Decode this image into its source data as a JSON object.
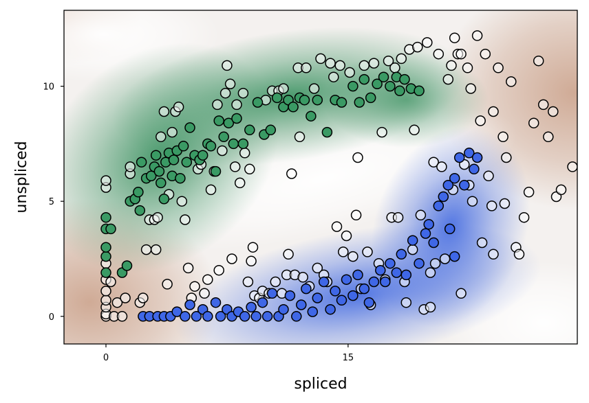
{
  "chart_data": {
    "type": "scatter",
    "title": "",
    "xlabel": "spliced",
    "ylabel": "unspliced",
    "xlim": [
      -2.6,
      29.2
    ],
    "ylim": [
      -1.2,
      13.3
    ],
    "xticks": [
      0,
      15
    ],
    "xtick_labels": [
      "0",
      "15"
    ],
    "yticks": [
      0,
      5,
      10
    ],
    "ytick_labels": [
      "0",
      "5",
      "10"
    ],
    "grid": false,
    "legend": "none",
    "colors": {
      "green": "#3a9a64",
      "blue": "#3f67e6",
      "white": "#ffffff",
      "background_green": "#2e8b57",
      "background_blue": "#4169e1",
      "background_brown": "#c99e86",
      "edge": "#000000"
    },
    "series": [
      {
        "color": "green",
        "points": [
          [
            0,
            1.9
          ],
          [
            0,
            2.6
          ],
          [
            0,
            3.0
          ],
          [
            0,
            3.8
          ],
          [
            0,
            4.3
          ],
          [
            0.3,
            3.8
          ],
          [
            1.0,
            1.9
          ],
          [
            1.3,
            2.2
          ],
          [
            1.5,
            5.0
          ],
          [
            1.8,
            5.1
          ],
          [
            2.0,
            5.4
          ],
          [
            2.1,
            4.6
          ],
          [
            2.2,
            6.7
          ],
          [
            2.5,
            6.0
          ],
          [
            2.8,
            6.1
          ],
          [
            3.0,
            6.5
          ],
          [
            3.1,
            7.0
          ],
          [
            3.3,
            6.3
          ],
          [
            3.4,
            5.8
          ],
          [
            3.6,
            5.1
          ],
          [
            3.7,
            6.7
          ],
          [
            3.9,
            7.1
          ],
          [
            4.1,
            6.1
          ],
          [
            4.2,
            6.8
          ],
          [
            4.4,
            7.2
          ],
          [
            4.6,
            6.0
          ],
          [
            4.8,
            7.4
          ],
          [
            5.0,
            6.7
          ],
          [
            5.2,
            8.2
          ],
          [
            5.5,
            7.0
          ],
          [
            5.8,
            6.8
          ],
          [
            6.0,
            7.0
          ],
          [
            6.3,
            7.5
          ],
          [
            6.5,
            7.4
          ],
          [
            6.8,
            6.3
          ],
          [
            7.0,
            8.5
          ],
          [
            7.3,
            7.8
          ],
          [
            7.6,
            8.4
          ],
          [
            7.9,
            7.5
          ],
          [
            8.1,
            8.6
          ],
          [
            8.5,
            7.5
          ],
          [
            8.9,
            8.1
          ],
          [
            9.4,
            9.3
          ],
          [
            9.8,
            7.9
          ],
          [
            10.2,
            8.1
          ],
          [
            10.6,
            9.5
          ],
          [
            11.0,
            9.1
          ],
          [
            11.3,
            9.4
          ],
          [
            11.6,
            9.1
          ],
          [
            12.0,
            9.5
          ],
          [
            12.3,
            9.4
          ],
          [
            12.7,
            8.7
          ],
          [
            13.1,
            9.4
          ],
          [
            13.7,
            8.0
          ],
          [
            14.2,
            9.4
          ],
          [
            14.6,
            9.3
          ],
          [
            15.3,
            10.0
          ],
          [
            15.7,
            9.3
          ],
          [
            16.0,
            10.3
          ],
          [
            16.4,
            9.5
          ],
          [
            16.8,
            10.1
          ],
          [
            17.2,
            10.4
          ],
          [
            17.6,
            10.0
          ],
          [
            18.0,
            10.4
          ],
          [
            18.2,
            9.8
          ],
          [
            18.5,
            10.3
          ],
          [
            18.9,
            9.9
          ],
          [
            19.4,
            9.8
          ]
        ]
      },
      {
        "color": "blue",
        "points": [
          [
            2.3,
            0
          ],
          [
            2.7,
            0
          ],
          [
            3.2,
            0
          ],
          [
            3.6,
            0
          ],
          [
            4.0,
            0
          ],
          [
            4.4,
            0.2
          ],
          [
            4.9,
            0
          ],
          [
            5.2,
            0.5
          ],
          [
            5.6,
            0
          ],
          [
            6.0,
            0.3
          ],
          [
            6.3,
            0
          ],
          [
            6.8,
            0.6
          ],
          [
            7.1,
            0
          ],
          [
            7.5,
            0.3
          ],
          [
            7.8,
            0
          ],
          [
            8.2,
            0.2
          ],
          [
            8.6,
            0
          ],
          [
            9.0,
            0.4
          ],
          [
            9.3,
            0
          ],
          [
            9.7,
            0.6
          ],
          [
            10.0,
            0
          ],
          [
            10.3,
            1.0
          ],
          [
            10.7,
            0
          ],
          [
            11.0,
            0.3
          ],
          [
            11.4,
            0.9
          ],
          [
            11.8,
            0
          ],
          [
            12.1,
            0.5
          ],
          [
            12.4,
            1.2
          ],
          [
            12.8,
            0.2
          ],
          [
            13.1,
            0.8
          ],
          [
            13.5,
            1.5
          ],
          [
            13.9,
            0.3
          ],
          [
            14.2,
            1.1
          ],
          [
            14.6,
            0.7
          ],
          [
            14.9,
            1.6
          ],
          [
            15.3,
            0.9
          ],
          [
            15.6,
            1.8
          ],
          [
            16.0,
            1.2
          ],
          [
            16.3,
            0.6
          ],
          [
            16.6,
            1.5
          ],
          [
            17.0,
            2.0
          ],
          [
            17.3,
            1.5
          ],
          [
            17.6,
            2.3
          ],
          [
            18.0,
            1.9
          ],
          [
            18.3,
            2.7
          ],
          [
            18.6,
            1.8
          ],
          [
            19.0,
            3.3
          ],
          [
            19.4,
            2.3
          ],
          [
            19.8,
            3.6
          ],
          [
            20.0,
            4.0
          ],
          [
            20.3,
            3.2
          ],
          [
            20.6,
            4.8
          ],
          [
            20.9,
            5.2
          ],
          [
            21.2,
            5.7
          ],
          [
            21.3,
            3.8
          ],
          [
            21.6,
            6.0
          ],
          [
            21.9,
            6.9
          ],
          [
            22.2,
            5.7
          ],
          [
            22.5,
            7.1
          ],
          [
            22.8,
            6.4
          ],
          [
            23.0,
            6.9
          ],
          [
            21.6,
            2.6
          ]
        ]
      },
      {
        "color": "white",
        "points": [
          [
            0,
            0
          ],
          [
            0,
            0.1
          ],
          [
            0,
            0.4
          ],
          [
            0,
            0.7
          ],
          [
            0,
            1.1
          ],
          [
            0,
            1.6
          ],
          [
            0,
            2.3
          ],
          [
            0,
            5.6
          ],
          [
            0,
            5.9
          ],
          [
            0.3,
            1.5
          ],
          [
            0.5,
            0
          ],
          [
            0.7,
            0.6
          ],
          [
            1.0,
            0
          ],
          [
            1.2,
            0.8
          ],
          [
            1.5,
            6.2
          ],
          [
            1.5,
            6.5
          ],
          [
            1.8,
            5.1
          ],
          [
            2.1,
            0.6
          ],
          [
            2.3,
            0.8
          ],
          [
            2.5,
            2.9
          ],
          [
            2.7,
            4.2
          ],
          [
            3.0,
            4.2
          ],
          [
            3.1,
            2.9
          ],
          [
            3.2,
            4.3
          ],
          [
            3.4,
            7.8
          ],
          [
            3.6,
            8.9
          ],
          [
            3.8,
            1.4
          ],
          [
            3.9,
            5.3
          ],
          [
            4.1,
            8.0
          ],
          [
            4.3,
            8.9
          ],
          [
            4.5,
            9.1
          ],
          [
            4.7,
            5.0
          ],
          [
            4.9,
            4.2
          ],
          [
            5.1,
            2.1
          ],
          [
            5.3,
            0.8
          ],
          [
            5.5,
            1.3
          ],
          [
            5.7,
            6.4
          ],
          [
            5.9,
            6.6
          ],
          [
            6.1,
            1.0
          ],
          [
            6.3,
            1.6
          ],
          [
            6.5,
            5.5
          ],
          [
            6.7,
            6.3
          ],
          [
            6.9,
            9.2
          ],
          [
            7.0,
            2.0
          ],
          [
            7.2,
            7.2
          ],
          [
            7.4,
            9.7
          ],
          [
            7.5,
            10.9
          ],
          [
            7.7,
            10.1
          ],
          [
            7.8,
            2.5
          ],
          [
            8.0,
            6.5
          ],
          [
            8.1,
            9.2
          ],
          [
            8.3,
            5.8
          ],
          [
            8.5,
            9.7
          ],
          [
            8.6,
            7.1
          ],
          [
            8.8,
            1.5
          ],
          [
            8.9,
            6.4
          ],
          [
            9.0,
            2.4
          ],
          [
            9.1,
            3.0
          ],
          [
            9.2,
            0.9
          ],
          [
            9.5,
            0.8
          ],
          [
            9.7,
            1.1
          ],
          [
            9.9,
            9.4
          ],
          [
            10.1,
            1.0
          ],
          [
            10.3,
            9.8
          ],
          [
            10.5,
            1.5
          ],
          [
            10.7,
            9.8
          ],
          [
            10.9,
            1.0
          ],
          [
            11.0,
            9.9
          ],
          [
            11.2,
            1.8
          ],
          [
            11.3,
            2.7
          ],
          [
            11.5,
            6.2
          ],
          [
            11.7,
            1.8
          ],
          [
            11.9,
            10.8
          ],
          [
            12.0,
            7.8
          ],
          [
            12.2,
            1.7
          ],
          [
            12.4,
            10.8
          ],
          [
            12.6,
            1.3
          ],
          [
            12.9,
            9.9
          ],
          [
            13.1,
            2.1
          ],
          [
            13.3,
            11.2
          ],
          [
            13.5,
            1.8
          ],
          [
            13.7,
            1.5
          ],
          [
            13.9,
            11.0
          ],
          [
            14.1,
            10.4
          ],
          [
            14.3,
            3.9
          ],
          [
            14.5,
            10.9
          ],
          [
            14.7,
            2.8
          ],
          [
            14.9,
            3.5
          ],
          [
            15.1,
            10.6
          ],
          [
            15.3,
            2.6
          ],
          [
            15.5,
            4.4
          ],
          [
            15.6,
            6.9
          ],
          [
            15.8,
            1.2
          ],
          [
            16.0,
            10.9
          ],
          [
            16.2,
            2.8
          ],
          [
            16.4,
            0.5
          ],
          [
            16.6,
            11.0
          ],
          [
            16.9,
            2.3
          ],
          [
            17.1,
            8.0
          ],
          [
            17.3,
            1.6
          ],
          [
            17.5,
            11.1
          ],
          [
            17.7,
            4.3
          ],
          [
            17.9,
            10.8
          ],
          [
            18.1,
            4.3
          ],
          [
            18.3,
            11.2
          ],
          [
            18.5,
            1.5
          ],
          [
            18.6,
            0.6
          ],
          [
            18.8,
            11.6
          ],
          [
            19.0,
            2.9
          ],
          [
            19.1,
            8.1
          ],
          [
            19.3,
            11.7
          ],
          [
            19.5,
            4.4
          ],
          [
            19.7,
            0.3
          ],
          [
            19.9,
            11.9
          ],
          [
            20.1,
            1.9
          ],
          [
            20.3,
            6.7
          ],
          [
            20.4,
            2.3
          ],
          [
            20.6,
            11.4
          ],
          [
            20.8,
            6.5
          ],
          [
            21.0,
            2.5
          ],
          [
            21.2,
            10.3
          ],
          [
            21.4,
            10.9
          ],
          [
            21.5,
            5.5
          ],
          [
            21.6,
            12.1
          ],
          [
            21.8,
            11.4
          ],
          [
            22.0,
            11.4
          ],
          [
            22.2,
            6.6
          ],
          [
            22.4,
            10.8
          ],
          [
            22.5,
            5.7
          ],
          [
            22.6,
            9.9
          ],
          [
            22.7,
            5.0
          ],
          [
            23.0,
            12.2
          ],
          [
            23.2,
            8.5
          ],
          [
            23.3,
            3.2
          ],
          [
            23.5,
            11.4
          ],
          [
            23.7,
            6.1
          ],
          [
            24.0,
            8.9
          ],
          [
            24.3,
            10.8
          ],
          [
            24.6,
            7.8
          ],
          [
            24.8,
            6.9
          ],
          [
            25.1,
            10.2
          ],
          [
            25.4,
            3.0
          ],
          [
            25.6,
            2.7
          ],
          [
            25.9,
            4.3
          ],
          [
            26.2,
            5.4
          ],
          [
            26.5,
            8.4
          ],
          [
            26.8,
            11.1
          ],
          [
            27.1,
            9.2
          ],
          [
            27.4,
            7.8
          ],
          [
            27.7,
            8.9
          ],
          [
            27.9,
            5.2
          ],
          [
            28.2,
            5.5
          ],
          [
            28.9,
            6.5
          ],
          [
            23.9,
            4.8
          ],
          [
            24.7,
            4.9
          ],
          [
            22.0,
            1.0
          ],
          [
            24.0,
            2.7
          ],
          [
            20.1,
            0.4
          ]
        ]
      }
    ]
  }
}
